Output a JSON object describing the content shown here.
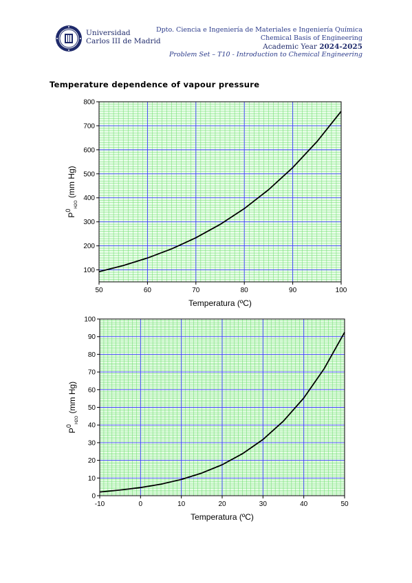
{
  "header": {
    "university_line1": "Universidad",
    "university_line2": "Carlos III de Madrid",
    "dept_line1": "Dpto. Ciencia e Ingeniería de Materiales e Ingeniería Química",
    "dept_line2": "Chemical Basis of Engineering",
    "academic_year_label": "Academic Year ",
    "academic_year_value": "2024-2025",
    "course_line": "Problem Set – T10 - Introduction to Chemical Engineering",
    "logo_icon": "university-seal-logo-icon"
  },
  "section_title": "Temperature dependence of vapour pressure",
  "colors": {
    "major_grid": "#3a3aff",
    "minor_grid": "#66dd66",
    "plot_bg": "#e9fde9",
    "curve": "#000000"
  },
  "chart_data": [
    {
      "type": "line",
      "xlabel": "Temperatura (ºC)",
      "ylabel_main": "P",
      "ylabel_sup": "0",
      "ylabel_sub": "H2O",
      "ylabel_unit": " (mm Hg)",
      "xlim": [
        50,
        100
      ],
      "ylim": [
        50,
        800
      ],
      "xticks": [
        50,
        60,
        70,
        80,
        90,
        100
      ],
      "yticks": [
        100,
        200,
        300,
        400,
        500,
        600,
        700,
        800
      ],
      "grid": true,
      "x": [
        50,
        55,
        60,
        65,
        70,
        75,
        80,
        85,
        90,
        95,
        100
      ],
      "y": [
        92.5,
        118,
        149.4,
        187.5,
        233.7,
        289.1,
        355.1,
        433.6,
        525.8,
        633.9,
        760
      ]
    },
    {
      "type": "line",
      "xlabel": "Temperatura (ºC)",
      "ylabel_main": "P",
      "ylabel_sup": "0",
      "ylabel_sub": "H2O",
      "ylabel_unit": " (mm Hg)",
      "xlim": [
        -10,
        50
      ],
      "ylim": [
        0,
        100
      ],
      "xticks": [
        -10,
        0,
        10,
        20,
        30,
        40,
        50
      ],
      "yticks": [
        0,
        10,
        20,
        30,
        40,
        50,
        60,
        70,
        80,
        90,
        100
      ],
      "grid": true,
      "x": [
        -10,
        -5,
        0,
        5,
        10,
        15,
        20,
        25,
        30,
        35,
        40,
        45,
        50
      ],
      "y": [
        2.1,
        3.2,
        4.6,
        6.5,
        9.2,
        12.8,
        17.5,
        23.8,
        31.8,
        42.2,
        55.3,
        71.9,
        92.5
      ]
    }
  ]
}
